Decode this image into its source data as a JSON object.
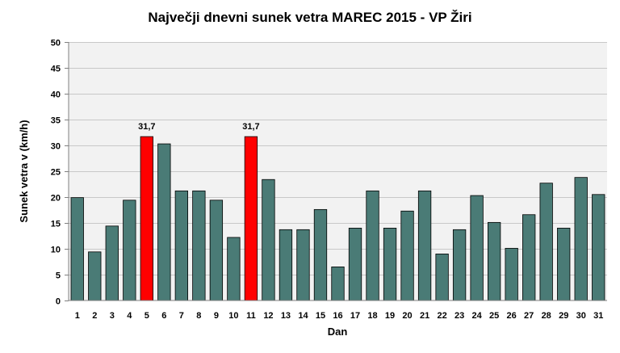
{
  "chart_data": {
    "type": "bar",
    "title": "Največji dnevni sunek vetra MAREC 2015 - VP Žiri",
    "xlabel": "Dan",
    "ylabel": "Sunek vetra v (km/h)",
    "ylim": [
      0,
      50
    ],
    "ytick_step": 5,
    "grid": true,
    "categories": [
      "1",
      "2",
      "3",
      "4",
      "5",
      "6",
      "7",
      "8",
      "9",
      "10",
      "11",
      "12",
      "13",
      "14",
      "15",
      "16",
      "17",
      "18",
      "19",
      "20",
      "21",
      "22",
      "23",
      "24",
      "25",
      "26",
      "27",
      "28",
      "29",
      "30",
      "31"
    ],
    "values": [
      19.9,
      9.4,
      14.4,
      19.4,
      31.7,
      30.3,
      21.2,
      21.2,
      19.4,
      12.2,
      31.7,
      23.4,
      13.7,
      13.7,
      17.6,
      6.5,
      14.0,
      21.2,
      14.0,
      17.3,
      21.2,
      9.0,
      13.7,
      20.3,
      15.1,
      10.1,
      16.6,
      22.7,
      14.0,
      23.8,
      20.5
    ],
    "data_labels": [
      {
        "index": 4,
        "text": "31,7"
      },
      {
        "index": 10,
        "text": "31,7"
      }
    ],
    "highlight_indices": [
      4,
      10
    ],
    "colors": {
      "bar": "#4a7b76",
      "highlight": "#ff0000",
      "plot_background": "#f2f2f2",
      "grid": "#c8c8c8"
    }
  }
}
